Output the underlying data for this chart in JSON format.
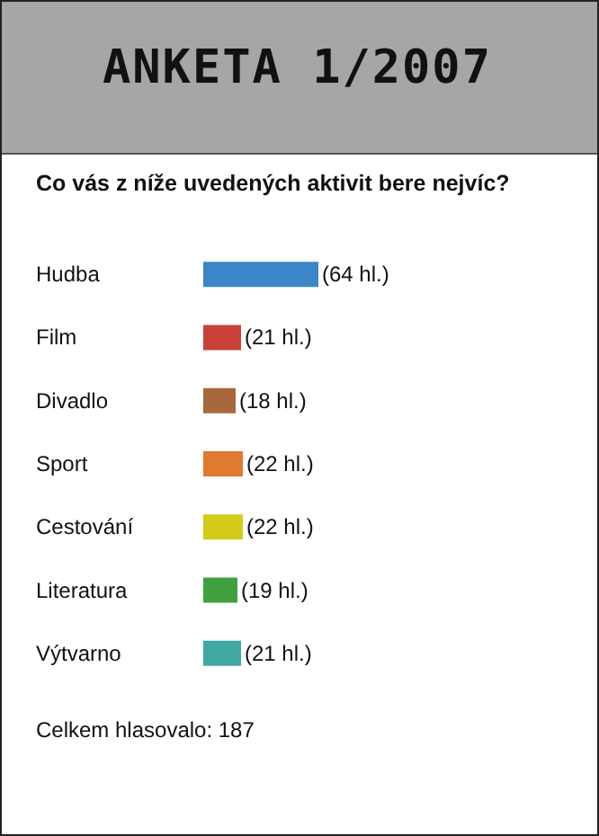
{
  "chart_data": {
    "type": "bar",
    "orientation": "horizontal",
    "title": "ANKETA 1/2007",
    "subtitle": "Co vás z níže uvedených aktivit bere nejvíc?",
    "categories": [
      "Hudba",
      "Film",
      "Divadlo",
      "Sport",
      "Cestování",
      "Literatura",
      "Výtvarno"
    ],
    "values": [
      64,
      21,
      18,
      22,
      22,
      19,
      21
    ],
    "value_labels": [
      "(64 hl.)",
      "(21 hl.)",
      "(18 hl.)",
      "(22 hl.)",
      "(22 hl.)",
      "(19 hl.)",
      "(21 hl.)"
    ],
    "colors": [
      "#3a86c8",
      "#c8423a",
      "#a8683e",
      "#e07a30",
      "#d4cc1c",
      "#40a040",
      "#40a8a0"
    ],
    "annotations": [
      "Celkem hlasovalo: 187"
    ]
  }
}
